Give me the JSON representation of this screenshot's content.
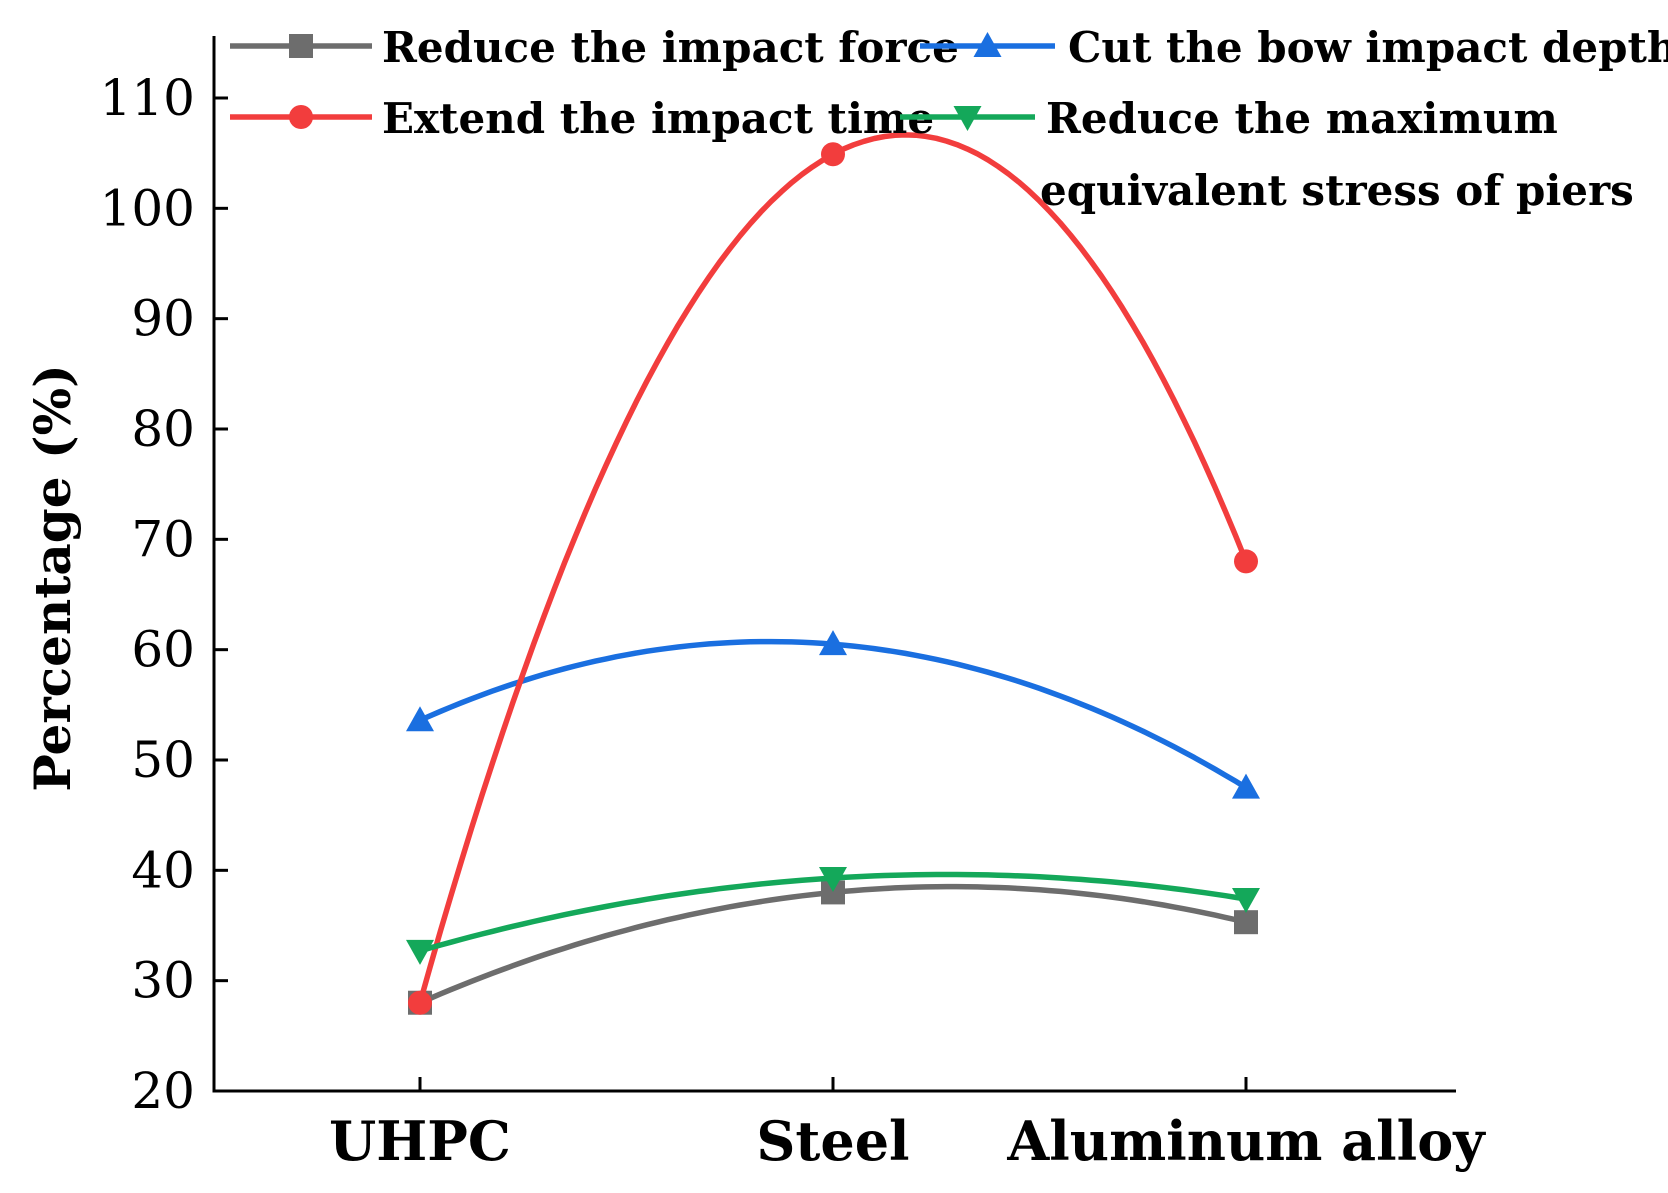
{
  "chart_data": {
    "type": "line",
    "title": "",
    "xlabel": "",
    "ylabel": "Percentage (%)",
    "categories": [
      "UHPC",
      "Steel",
      "Aluminum alloy"
    ],
    "ylim": [
      20,
      115
    ],
    "yticks": [
      20,
      30,
      40,
      50,
      60,
      70,
      80,
      90,
      100,
      110
    ],
    "grid": false,
    "legend_position": "top",
    "smooth": true,
    "series": [
      {
        "name": "Reduce the impact force",
        "legend_lines": [
          "Reduce the impact force"
        ],
        "color": "#6d6d6d",
        "marker": "square",
        "values": [
          28,
          38,
          35.3
        ]
      },
      {
        "name": "Cut the bow impact depth",
        "legend_lines": [
          "Cut the bow impact depth"
        ],
        "color": "#1a6fe0",
        "marker": "triangle-up",
        "values": [
          53.6,
          60.5,
          47.5
        ]
      },
      {
        "name": "Extend the impact time",
        "legend_lines": [
          "Extend the impact time"
        ],
        "color": "#f23d3d",
        "marker": "circle",
        "values": [
          28,
          104.9,
          68
        ]
      },
      {
        "name": "Reduce the maximum equivalent stress of piers",
        "legend_lines": [
          "Reduce the maximum",
          "equivalent stress of piers"
        ],
        "color": "#14a85a",
        "marker": "triangle-down",
        "values": [
          32.7,
          39.3,
          37.4
        ]
      }
    ]
  }
}
